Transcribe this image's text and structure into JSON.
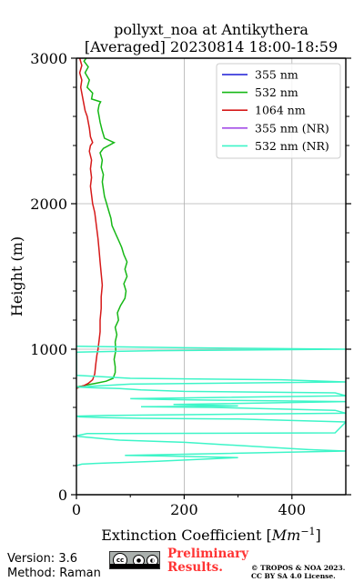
{
  "chart_data": {
    "type": "line",
    "title": "pollyxt_noa at Antikythera",
    "subtitle": "[Averaged] 20230814 18:00-18:59",
    "xlabel": "Extinction Coefficient [Mm⁻¹]",
    "ylabel": "Height (m)",
    "xlim": [
      0,
      500
    ],
    "ylim": [
      0,
      3000
    ],
    "x_ticks": [
      0,
      200,
      400
    ],
    "y_ticks": [
      0,
      1000,
      2000,
      3000
    ],
    "grid": true,
    "legend_position": "top-right",
    "series": [
      {
        "name": "355 nm",
        "color": "#1a1ad6",
        "points": []
      },
      {
        "name": "532 nm",
        "color": "#16b816",
        "points": [
          [
            0,
            740
          ],
          [
            8,
            745
          ],
          [
            20,
            755
          ],
          [
            35,
            765
          ],
          [
            55,
            780
          ],
          [
            68,
            800
          ],
          [
            72,
            840
          ],
          [
            72,
            880
          ],
          [
            70,
            930
          ],
          [
            73,
            990
          ],
          [
            72,
            1050
          ],
          [
            75,
            1100
          ],
          [
            72,
            1150
          ],
          [
            78,
            1200
          ],
          [
            76,
            1250
          ],
          [
            82,
            1300
          ],
          [
            90,
            1350
          ],
          [
            92,
            1400
          ],
          [
            88,
            1450
          ],
          [
            94,
            1500
          ],
          [
            90,
            1550
          ],
          [
            94,
            1600
          ],
          [
            88,
            1650
          ],
          [
            84,
            1700
          ],
          [
            78,
            1750
          ],
          [
            72,
            1800
          ],
          [
            66,
            1850
          ],
          [
            64,
            1900
          ],
          [
            60,
            1950
          ],
          [
            56,
            2000
          ],
          [
            52,
            2050
          ],
          [
            50,
            2100
          ],
          [
            48,
            2150
          ],
          [
            50,
            2200
          ],
          [
            46,
            2250
          ],
          [
            48,
            2300
          ],
          [
            44,
            2350
          ],
          [
            50,
            2380
          ],
          [
            70,
            2420
          ],
          [
            52,
            2450
          ],
          [
            48,
            2500
          ],
          [
            44,
            2560
          ],
          [
            42,
            2600
          ],
          [
            40,
            2640
          ],
          [
            42,
            2680
          ],
          [
            45,
            2700
          ],
          [
            28,
            2720
          ],
          [
            30,
            2760
          ],
          [
            20,
            2800
          ],
          [
            24,
            2850
          ],
          [
            16,
            2900
          ],
          [
            22,
            2940
          ],
          [
            14,
            2980
          ],
          [
            18,
            3000
          ]
        ]
      },
      {
        "name": "1064 nm",
        "color": "#d61a1a",
        "points": [
          [
            0,
            730
          ],
          [
            6,
            740
          ],
          [
            14,
            750
          ],
          [
            22,
            765
          ],
          [
            30,
            790
          ],
          [
            34,
            830
          ],
          [
            36,
            900
          ],
          [
            38,
            960
          ],
          [
            40,
            1000
          ],
          [
            42,
            1060
          ],
          [
            44,
            1120
          ],
          [
            44,
            1200
          ],
          [
            46,
            1280
          ],
          [
            46,
            1360
          ],
          [
            48,
            1440
          ],
          [
            46,
            1520
          ],
          [
            44,
            1600
          ],
          [
            42,
            1680
          ],
          [
            40,
            1760
          ],
          [
            38,
            1820
          ],
          [
            36,
            1880
          ],
          [
            34,
            1940
          ],
          [
            30,
            2000
          ],
          [
            28,
            2060
          ],
          [
            26,
            2120
          ],
          [
            28,
            2180
          ],
          [
            26,
            2240
          ],
          [
            28,
            2300
          ],
          [
            24,
            2360
          ],
          [
            26,
            2400
          ],
          [
            30,
            2420
          ],
          [
            26,
            2460
          ],
          [
            24,
            2520
          ],
          [
            22,
            2560
          ],
          [
            20,
            2600
          ],
          [
            16,
            2640
          ],
          [
            14,
            2680
          ],
          [
            12,
            2720
          ],
          [
            10,
            2760
          ],
          [
            8,
            2800
          ],
          [
            10,
            2850
          ],
          [
            6,
            2900
          ],
          [
            10,
            2950
          ],
          [
            6,
            3000
          ]
        ]
      },
      {
        "name": "355 nm (NR)",
        "color": "#a44ee6",
        "points": []
      },
      {
        "name": "532 nm (NR)",
        "color": "#3df5c8",
        "points": [
          [
            0,
            200
          ],
          [
            10,
            210
          ],
          [
            35,
            215
          ],
          [
            150,
            230
          ],
          [
            300,
            255
          ],
          [
            180,
            265
          ],
          [
            90,
            270
          ],
          [
            500,
            300
          ],
          [
            430,
            310
          ],
          [
            200,
            360
          ],
          [
            80,
            375
          ],
          [
            5,
            400
          ],
          [
            0,
            405
          ],
          [
            20,
            420
          ],
          [
            480,
            425
          ],
          [
            500,
            500
          ],
          [
            300,
            520
          ],
          [
            120,
            525
          ],
          [
            50,
            530
          ],
          [
            5,
            535
          ],
          [
            0,
            540
          ],
          [
            60,
            545
          ],
          [
            500,
            560
          ],
          [
            480,
            580
          ],
          [
            250,
            600
          ],
          [
            120,
            605
          ],
          [
            300,
            610
          ],
          [
            180,
            620
          ],
          [
            500,
            640
          ],
          [
            250,
            650
          ],
          [
            160,
            655
          ],
          [
            100,
            660
          ],
          [
            500,
            680
          ],
          [
            480,
            700
          ],
          [
            200,
            710
          ],
          [
            120,
            720
          ],
          [
            80,
            730
          ],
          [
            30,
            735
          ],
          [
            0,
            740
          ],
          [
            100,
            760
          ],
          [
            500,
            775
          ],
          [
            380,
            790
          ],
          [
            100,
            800
          ],
          [
            0,
            820
          ],
          [
            0,
            980
          ],
          [
            150,
            990
          ],
          [
            500,
            1000
          ],
          [
            200,
            1010
          ],
          [
            0,
            1020
          ]
        ]
      }
    ]
  },
  "footer": {
    "version": "Version: 3.6",
    "method": "Method: Raman",
    "preliminary_line1": "Preliminary",
    "preliminary_line2": "Results.",
    "copyright_line1": "© TROPOS & NOA 2023.",
    "copyright_line2": "CC BY SA 4.0 License.",
    "license_logo": "cc-by-sa-icon"
  }
}
